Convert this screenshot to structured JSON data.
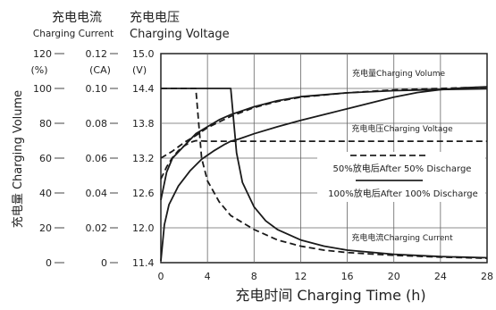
{
  "chart_data": {
    "type": "line",
    "headers": {
      "current_cn": "充电电流",
      "current_en": "Charging Current",
      "voltage_cn": "充电电压",
      "voltage_en": "Charging Voltage"
    },
    "ylabel_left": "充电量 Charging Volume",
    "xlabel": "充电时间 Charging Time (h)",
    "axes": {
      "volume": {
        "unit": "(%)",
        "ticks": [
          "120",
          "100",
          "80",
          "60",
          "40",
          "20",
          "0"
        ],
        "range": [
          0,
          120
        ]
      },
      "current": {
        "unit": "(CA)",
        "ticks": [
          "0.12",
          "0.10",
          "0.08",
          "0.06",
          "0.04",
          "0.02",
          "0"
        ],
        "range": [
          0,
          0.12
        ]
      },
      "voltage": {
        "unit": "(V)",
        "ticks": [
          "15.0",
          "14.4",
          "13.8",
          "13.2",
          "12.6",
          "12.0",
          "11.4"
        ],
        "range": [
          11.4,
          15.0
        ]
      }
    },
    "x_ticks": [
      "0",
      "4",
      "8",
      "12",
      "16",
      "20",
      "24",
      "28"
    ],
    "xlim": [
      0,
      28
    ],
    "annotations": {
      "volume": "充电量Charging Volume",
      "voltage": "充电电压Charging Voltage",
      "current": "充电电流Charging Current",
      "legend_50": "50%放电后After 50% Discharge",
      "legend_100": "100%放电后After 100% Discharge"
    },
    "series": [
      {
        "curve": "volume",
        "style": "solid",
        "points": [
          [
            0,
            36
          ],
          [
            0.5,
            52
          ],
          [
            1,
            60
          ],
          [
            2,
            67
          ],
          [
            3,
            74
          ],
          [
            4,
            78
          ],
          [
            5,
            82
          ],
          [
            6,
            85
          ],
          [
            8,
            89.5
          ],
          [
            10,
            93
          ],
          [
            12,
            95.3
          ],
          [
            16,
            97.5
          ],
          [
            20,
            98.7
          ],
          [
            24,
            99.4
          ],
          [
            28,
            99.8
          ]
        ]
      },
      {
        "curve": "volume",
        "style": "dashed",
        "points": [
          [
            0,
            60
          ],
          [
            1,
            64
          ],
          [
            2,
            69
          ],
          [
            3,
            73
          ],
          [
            4,
            77.5
          ],
          [
            6,
            84
          ],
          [
            8,
            89
          ],
          [
            10,
            92.5
          ],
          [
            12,
            95
          ],
          [
            16,
            97.5
          ],
          [
            20,
            99.2
          ],
          [
            24,
            100
          ],
          [
            28,
            100.8
          ]
        ]
      },
      {
        "curve": "voltage",
        "style": "solid",
        "points": [
          [
            0,
            11.43
          ],
          [
            0.3,
            12.05
          ],
          [
            0.7,
            12.4
          ],
          [
            1.5,
            12.72
          ],
          [
            2.5,
            12.98
          ],
          [
            3.5,
            13.18
          ],
          [
            4.5,
            13.32
          ],
          [
            5.5,
            13.44
          ],
          [
            6,
            13.49
          ],
          [
            6.7,
            13.53
          ],
          [
            8,
            13.62
          ],
          [
            10,
            13.74
          ],
          [
            12,
            13.85
          ],
          [
            14,
            13.95
          ],
          [
            16,
            14.05
          ],
          [
            18,
            14.15
          ],
          [
            20,
            14.25
          ],
          [
            22,
            14.33
          ],
          [
            24,
            14.38
          ],
          [
            26,
            14.41
          ],
          [
            28,
            14.43
          ]
        ]
      },
      {
        "curve": "voltage",
        "style": "dashed",
        "points": [
          [
            0,
            12.84
          ],
          [
            0.5,
            13.05
          ],
          [
            1,
            13.21
          ],
          [
            1.5,
            13.33
          ],
          [
            2,
            13.41
          ],
          [
            2.5,
            13.47
          ],
          [
            3,
            13.5
          ],
          [
            4,
            13.49
          ],
          [
            28,
            13.49
          ]
        ]
      },
      {
        "curve": "current",
        "style": "solid",
        "points": [
          [
            0,
            0.1
          ],
          [
            6,
            0.1
          ],
          [
            6.5,
            0.063
          ],
          [
            7,
            0.046
          ],
          [
            8,
            0.032
          ],
          [
            9,
            0.024
          ],
          [
            10,
            0.019
          ],
          [
            12,
            0.013
          ],
          [
            14,
            0.0095
          ],
          [
            16,
            0.0072
          ],
          [
            20,
            0.0048
          ],
          [
            24,
            0.0035
          ],
          [
            28,
            0.0028
          ]
        ]
      },
      {
        "curve": "current",
        "style": "dashed",
        "points": [
          [
            0,
            0.1
          ],
          [
            3,
            0.1
          ],
          [
            3.5,
            0.06
          ],
          [
            4,
            0.047
          ],
          [
            5,
            0.035
          ],
          [
            6,
            0.027
          ],
          [
            8,
            0.019
          ],
          [
            10,
            0.013
          ],
          [
            12,
            0.0095
          ],
          [
            14,
            0.0072
          ],
          [
            16,
            0.0058
          ],
          [
            20,
            0.0042
          ],
          [
            24,
            0.0032
          ],
          [
            28,
            0.0025
          ]
        ]
      }
    ]
  }
}
